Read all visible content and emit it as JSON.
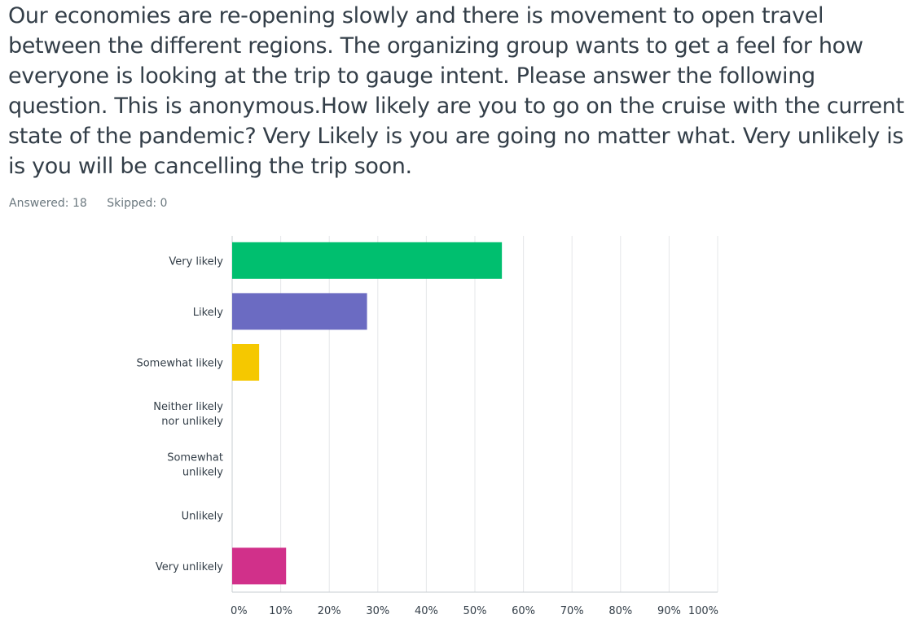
{
  "question": {
    "text": "Our economies are re-opening slowly and there is movement to open travel between the different regions. The organizing group wants to get a feel for how everyone is looking at the trip to gauge intent. Please answer the following question. This is anonymous.How likely are you to go on the cruise with the current state of the pandemic? Very Likely is you are going no matter what. Very unlikely is is you will be cancelling the trip soon."
  },
  "stats": {
    "answered_label": "Answered:",
    "answered_value": "18",
    "skipped_label": "Skipped:",
    "skipped_value": "0"
  },
  "chart_data": {
    "type": "bar",
    "orientation": "horizontal",
    "categories": [
      [
        "Very likely"
      ],
      [
        "Likely"
      ],
      [
        "Somewhat likely"
      ],
      [
        "Neither likely",
        "nor unlikely"
      ],
      [
        "Somewhat",
        "unlikely"
      ],
      [
        "Unlikely"
      ],
      [
        "Very unlikely"
      ]
    ],
    "values": [
      55.56,
      27.78,
      5.56,
      0,
      0,
      0,
      11.11
    ],
    "unit": "%",
    "colors": [
      "#00bf6f",
      "#6b6bc2",
      "#f5c800",
      "#2cb3c9",
      "#ef7a33",
      "#8c9ba6",
      "#d1308a"
    ],
    "xlim": [
      0,
      100
    ],
    "xticks": [
      "0%",
      "10%",
      "20%",
      "30%",
      "40%",
      "50%",
      "60%",
      "70%",
      "80%",
      "90%",
      "100%"
    ],
    "grid": true
  }
}
